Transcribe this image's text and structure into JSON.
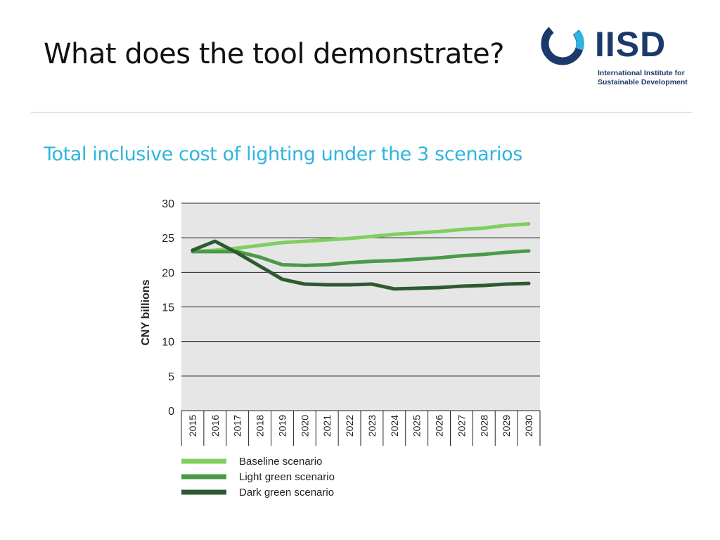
{
  "slide": {
    "title": "What does the tool demonstrate?",
    "subtitle": "Total inclusive cost of lighting under the 3 scenarios"
  },
  "logo": {
    "name": "IISD",
    "line1": "International Institute for",
    "line2": "Sustainable Development",
    "ring_colors": [
      "#1b3a6b",
      "#2fb4e0"
    ]
  },
  "colors": {
    "title": "#111111",
    "subtitle": "#2fb4e0",
    "plot_background": "#e6e6e6",
    "gridline": "#222222"
  },
  "chart_data": {
    "type": "line",
    "title": "",
    "xlabel": "",
    "ylabel": "CNY billions",
    "ylim": [
      0,
      30
    ],
    "yticks": [
      0,
      5,
      10,
      15,
      20,
      25,
      30
    ],
    "grid": true,
    "legend_position": "bottom",
    "x": [
      "2015",
      "2016",
      "2017",
      "2018",
      "2019",
      "2020",
      "2021",
      "2022",
      "2023",
      "2024",
      "2025",
      "2026",
      "2027",
      "2028",
      "2029",
      "2030"
    ],
    "series": [
      {
        "name": "Baseline scenario",
        "color": "#7fcf5e",
        "values": [
          23.0,
          23.2,
          23.5,
          23.9,
          24.3,
          24.5,
          24.7,
          24.9,
          25.2,
          25.5,
          25.7,
          25.9,
          26.2,
          26.4,
          26.8,
          27.0
        ]
      },
      {
        "name": "Light green scenario",
        "color": "#4a9a4a",
        "values": [
          23.0,
          23.0,
          23.0,
          22.2,
          21.1,
          21.0,
          21.1,
          21.4,
          21.6,
          21.7,
          21.9,
          22.1,
          22.4,
          22.6,
          22.9,
          23.1
        ]
      },
      {
        "name": "Dark green scenario",
        "color": "#2d5a31",
        "values": [
          23.2,
          24.5,
          22.8,
          20.9,
          19.0,
          18.3,
          18.2,
          18.2,
          18.3,
          17.6,
          17.7,
          17.8,
          18.0,
          18.1,
          18.3,
          18.4
        ]
      }
    ]
  }
}
